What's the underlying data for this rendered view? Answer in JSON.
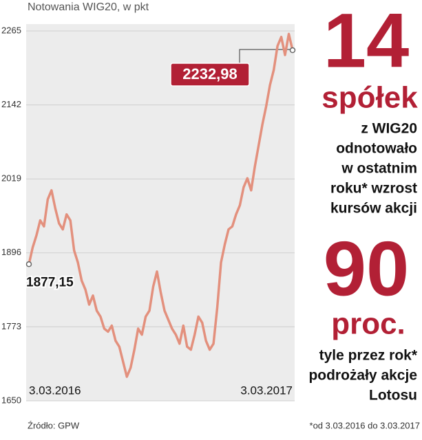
{
  "chart_data": {
    "type": "line",
    "title": "Notowania WIG20, w pkt",
    "categories": [
      "3.03.2016",
      null,
      null,
      null,
      null,
      null,
      null,
      null,
      null,
      null,
      null,
      null,
      null,
      null,
      null,
      null,
      null,
      null,
      null,
      null,
      null,
      null,
      null,
      null,
      null,
      null,
      null,
      null,
      null,
      null,
      null,
      null,
      null,
      null,
      null,
      null,
      null,
      null,
      null,
      null,
      null,
      null,
      null,
      null,
      null,
      null,
      null,
      null,
      null,
      null,
      null,
      null,
      null,
      null,
      null,
      null,
      null,
      null,
      null,
      null,
      null,
      null,
      null,
      null,
      null,
      null,
      null,
      null,
      null,
      null,
      "3.03.2017"
    ],
    "values": [
      1877.15,
      1905,
      1925,
      1950,
      1940,
      1985,
      2000,
      1970,
      1945,
      1935,
      1960,
      1950,
      1900,
      1880,
      1850,
      1835,
      1810,
      1825,
      1800,
      1790,
      1770,
      1765,
      1775,
      1750,
      1740,
      1715,
      1690,
      1705,
      1735,
      1770,
      1760,
      1790,
      1800,
      1840,
      1865,
      1830,
      1800,
      1785,
      1770,
      1760,
      1745,
      1775,
      1740,
      1735,
      1760,
      1790,
      1780,
      1750,
      1735,
      1745,
      1805,
      1880,
      1910,
      1935,
      1940,
      1960,
      1975,
      2005,
      2020,
      2000,
      2040,
      2075,
      2110,
      2140,
      2175,
      2200,
      2240,
      2255,
      2225,
      2260,
      2232.98
    ],
    "value_labels": [
      "1877,15",
      null,
      null,
      null,
      null,
      null,
      null,
      null,
      null,
      null,
      null,
      null,
      null,
      null,
      null,
      null,
      null,
      null,
      null,
      null,
      null,
      null,
      null,
      null,
      null,
      null,
      null,
      null,
      null,
      null,
      null,
      null,
      null,
      null,
      null,
      null,
      null,
      null,
      null,
      null,
      null,
      null,
      null,
      null,
      null,
      null,
      null,
      null,
      null,
      null,
      null,
      null,
      null,
      null,
      null,
      null,
      null,
      null,
      null,
      null,
      null,
      null,
      null,
      null,
      null,
      null,
      null,
      null,
      null,
      null,
      "2232,98"
    ],
    "color": "#e3907d",
    "ylim": [
      1650,
      2265
    ],
    "yticks": [
      1650,
      1773,
      1896,
      2019,
      2142,
      2265
    ],
    "grid": true,
    "source": "Źródło: GPW",
    "footnote": "*od 3.03.2016 do 3.03.2017"
  },
  "side_panel": {
    "number_1": 14,
    "unit_1": "spółek",
    "text_1": [
      "z WIG20",
      "odnotowało",
      "w ostatnim",
      "roku* wzrost",
      "kursów akcji"
    ],
    "number_2": 90,
    "unit_2": "proc.",
    "text_2": [
      "tyle przez rok*",
      "podrożały akcje",
      "Lotosu"
    ]
  }
}
